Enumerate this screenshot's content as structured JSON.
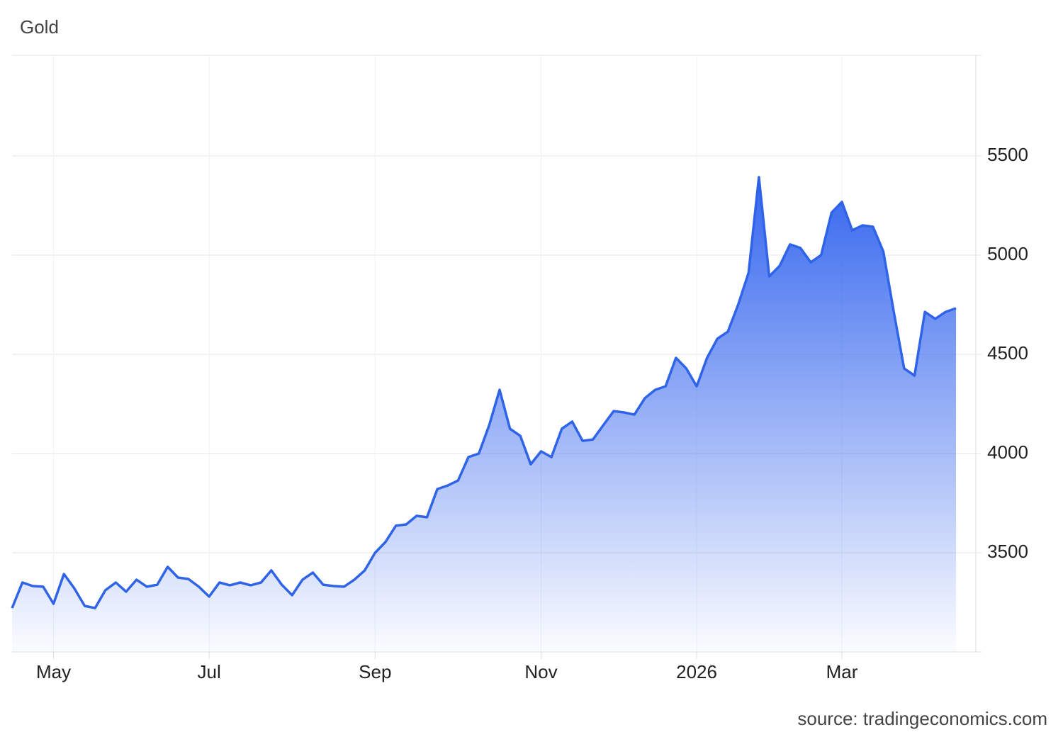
{
  "chart_data": {
    "type": "area",
    "title": "Gold",
    "source": "source: tradingeconomics.com",
    "categories": [
      null,
      null,
      null,
      null,
      "May",
      null,
      null,
      null,
      null,
      null,
      null,
      null,
      null,
      null,
      null,
      null,
      null,
      null,
      null,
      "Jul",
      null,
      null,
      null,
      null,
      null,
      null,
      null,
      null,
      null,
      null,
      null,
      null,
      null,
      null,
      null,
      "Sep",
      null,
      null,
      null,
      null,
      null,
      null,
      null,
      null,
      null,
      null,
      null,
      null,
      null,
      null,
      null,
      "Nov",
      null,
      null,
      null,
      null,
      null,
      null,
      null,
      null,
      null,
      null,
      null,
      null,
      null,
      null,
      "2026",
      null,
      null,
      null,
      null,
      null,
      null,
      null,
      null,
      null,
      null,
      null,
      null,
      null,
      "Mar",
      null,
      null,
      null,
      null,
      null,
      null,
      null,
      null,
      null,
      null,
      null
    ],
    "series": [
      {
        "name": "Gold",
        "color": "#2f63e8",
        "values": [
          3221,
          3350,
          3332,
          3329,
          3243,
          3393,
          3321,
          3232,
          3221,
          3311,
          3350,
          3304,
          3364,
          3329,
          3339,
          3429,
          3375,
          3368,
          3329,
          3279,
          3350,
          3336,
          3350,
          3336,
          3350,
          3411,
          3339,
          3286,
          3364,
          3400,
          3339,
          3332,
          3329,
          3364,
          3411,
          3500,
          3554,
          3636,
          3643,
          3686,
          3679,
          3821,
          3839,
          3864,
          3982,
          4000,
          4143,
          4321,
          4125,
          4089,
          3946,
          4011,
          3982,
          4125,
          4161,
          4064,
          4071,
          4143,
          4214,
          4207,
          4196,
          4279,
          4321,
          4339,
          4482,
          4429,
          4339,
          4482,
          4579,
          4614,
          4750,
          4911,
          5393,
          4893,
          4946,
          5054,
          5036,
          4964,
          5000,
          5214,
          5268,
          5125,
          5150,
          5143,
          5018,
          4714,
          4429,
          4393,
          4714,
          4679,
          4714,
          4732
        ]
      }
    ],
    "ylim": [
      3000,
      6000
    ],
    "yticks": [
      3500,
      4000,
      4500,
      5000,
      5500
    ],
    "grid": true
  }
}
